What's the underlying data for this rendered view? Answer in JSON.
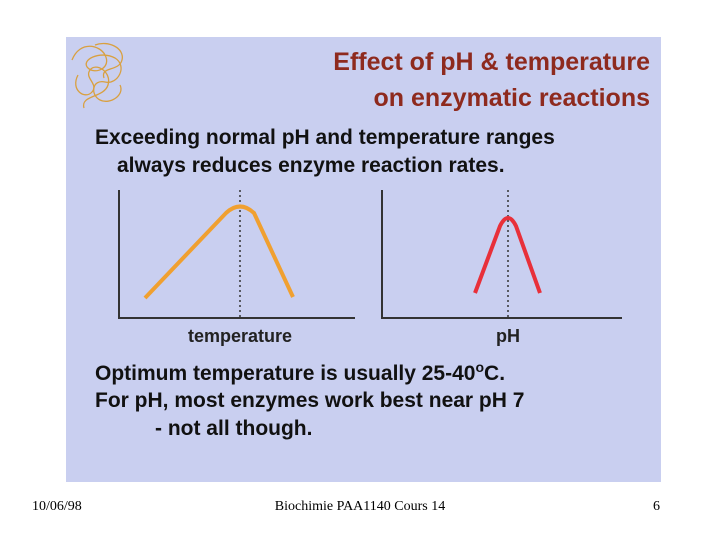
{
  "header": {
    "title_lines": [
      "Effect of pH  & temperature",
      "on enzymatic reactions"
    ]
  },
  "intro_lines": [
    "Exceeding normal pH and temperature ranges",
    "always reduces enzyme reaction rates."
  ],
  "charts": [
    {
      "x_label": "temperature"
    },
    {
      "x_label": "pH"
    }
  ],
  "conclusion": {
    "line1_main": "Optimum temperature is usually 25-40",
    "line1_sup": "o",
    "line1_end": "C.",
    "line2": "For pH, most enzymes work best near pH 7",
    "line3": "- not all though."
  },
  "footer": {
    "date": "10/06/98",
    "course": "Biochimie PAA1140  Cours 14",
    "page": "6"
  }
}
